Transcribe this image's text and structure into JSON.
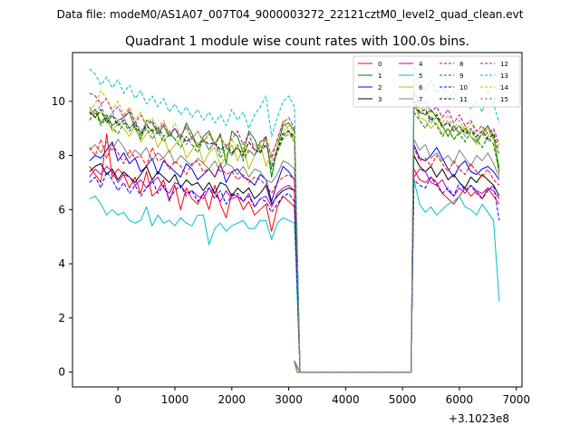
{
  "figure": {
    "suptitle": "Data file: modeM0/AS1A07_007T04_9000003272_22121cztM0_level2_quad_clean.evt",
    "offset_label": "+3.1023e8"
  },
  "chart_data": {
    "type": "line",
    "title": "Quadrant 1 module wise count rates with 100.0s bins.",
    "xlabel": "",
    "ylabel": "",
    "xlim": [
      -800,
      7100
    ],
    "ylim": [
      -0.55,
      11.8
    ],
    "x_offset": 310230000,
    "xticks": [
      0,
      1000,
      2000,
      3000,
      4000,
      5000,
      6000,
      7000
    ],
    "xtick_labels": [
      "0",
      "1000",
      "2000",
      "3000",
      "4000",
      "5000",
      "6000",
      "7000"
    ],
    "yticks": [
      0,
      2,
      4,
      6,
      8,
      10
    ],
    "ytick_labels": [
      "0",
      "2",
      "4",
      "6",
      "8",
      "10"
    ],
    "grid": false,
    "legend_position": "top-right",
    "legend_columns": 4,
    "gap": [
      3150,
      5150
    ],
    "series": [
      {
        "name": "0",
        "color": "#ff0000",
        "dash": "solid",
        "seg1": [
          7.6,
          7.3,
          7.0,
          8.8,
          7.2,
          7.5,
          7.3,
          6.8,
          7.2,
          6.6,
          7.4,
          6.5,
          6.7,
          7.1,
          6.3,
          6.9,
          6.0,
          6.8,
          6.4,
          6.2,
          6.6,
          6.0,
          6.9,
          6.2,
          5.7,
          6.6,
          6.5,
          6.0,
          6.3,
          5.8,
          6.0,
          6.2,
          5.2,
          6.1,
          6.5,
          6.3,
          6.1,
          5.7
        ],
        "seg2": [
          7.5,
          7.1,
          7.0,
          7.2,
          7.0,
          6.6,
          6.4,
          6.2,
          6.5,
          6.8,
          6.5,
          6.7,
          6.4,
          6.8,
          6.5,
          6.2
        ]
      },
      {
        "name": "1",
        "color": "#008000",
        "dash": "solid",
        "seg1": [
          9.5,
          9.7,
          9.2,
          9.5,
          9.1,
          9.3,
          9.4,
          9.6,
          9.0,
          8.6,
          9.3,
          9.2,
          8.8,
          9.1,
          8.7,
          9.0,
          8.6,
          9.2,
          8.8,
          8.3,
          8.7,
          8.9,
          8.4,
          8.8,
          7.7,
          8.9,
          8.7,
          8.1,
          8.9,
          8.6,
          8.1,
          8.7,
          7.2,
          8.3,
          9.1,
          9.2,
          8.9,
          8.4
        ],
        "seg2": [
          9.8,
          9.6,
          9.5,
          9.7,
          9.4,
          9.1,
          8.7,
          9.1,
          8.8,
          9.0,
          8.7,
          8.5,
          8.8,
          9.1,
          8.7,
          7.5
        ]
      },
      {
        "name": "2",
        "color": "#0000ff",
        "dash": "solid",
        "seg1": [
          7.8,
          8.0,
          7.9,
          8.2,
          8.5,
          7.8,
          8.1,
          7.7,
          7.9,
          7.4,
          7.6,
          7.9,
          7.3,
          7.8,
          7.6,
          7.4,
          7.2,
          7.7,
          7.5,
          7.1,
          7.3,
          7.5,
          7.2,
          7.7,
          7.0,
          7.4,
          7.5,
          7.2,
          7.1,
          6.9,
          7.3,
          7.1,
          6.3,
          7.0,
          7.6,
          7.4,
          7.1,
          6.8
        ],
        "seg2": [
          8.4,
          7.9,
          7.8,
          8.0,
          8.3,
          7.9,
          7.5,
          7.2,
          7.6,
          7.8,
          7.4,
          7.3,
          7.5,
          7.6,
          7.4,
          7.1
        ]
      },
      {
        "name": "3",
        "color": "#000000",
        "dash": "solid",
        "seg1": [
          7.4,
          7.6,
          7.7,
          7.3,
          7.5,
          7.1,
          7.4,
          7.2,
          7.0,
          7.3,
          7.6,
          7.1,
          7.4,
          7.2,
          7.0,
          7.3,
          6.8,
          7.1,
          6.9,
          7.0,
          6.7,
          7.0,
          6.6,
          7.0,
          6.9,
          6.5,
          6.8,
          6.6,
          6.8,
          6.4,
          6.6,
          6.9,
          6.2,
          6.5,
          6.7,
          6.8,
          6.7,
          6.6
        ],
        "seg2": [
          8.0,
          7.6,
          7.4,
          7.6,
          7.2,
          7.5,
          7.1,
          7.3,
          7.0,
          6.8,
          7.2,
          7.0,
          7.3,
          7.1,
          6.9,
          6.5
        ]
      },
      {
        "name": "4",
        "color": "#bf00bf",
        "dash": "solid",
        "seg1": [
          7.2,
          7.5,
          7.3,
          7.6,
          7.4,
          7.0,
          7.3,
          7.2,
          6.9,
          7.1,
          6.8,
          7.0,
          7.2,
          6.8,
          6.6,
          7.0,
          6.9,
          6.6,
          6.7,
          6.5,
          6.4,
          6.8,
          6.6,
          6.3,
          6.7,
          6.4,
          6.5,
          6.3,
          6.6,
          6.1,
          6.4,
          6.5,
          6.1,
          6.6,
          6.8,
          6.9,
          6.7,
          6.0
        ],
        "seg2": [
          7.2,
          7.5,
          7.4,
          7.0,
          6.9,
          7.1,
          6.7,
          6.5,
          6.8,
          6.6,
          6.9,
          6.7,
          6.6,
          6.8,
          6.7,
          6.4
        ]
      },
      {
        "name": "5",
        "color": "#00bfbf",
        "dash": "solid",
        "seg1": [
          6.4,
          6.5,
          6.2,
          5.8,
          6.0,
          5.8,
          5.9,
          5.6,
          5.5,
          5.6,
          6.1,
          5.4,
          5.8,
          5.5,
          5.6,
          5.4,
          5.7,
          5.5,
          5.4,
          5.8,
          5.8,
          4.7,
          5.3,
          5.5,
          5.2,
          5.4,
          5.5,
          5.6,
          5.3,
          5.3,
          5.6,
          5.6,
          4.9,
          5.5,
          5.7,
          5.6,
          5.5,
          4.3
        ],
        "seg2": [
          7.1,
          6.2,
          5.9,
          6.1,
          5.8,
          6.0,
          6.2,
          6.3,
          6.5,
          6.1,
          6.0,
          5.8,
          6.2,
          5.9,
          5.6,
          2.6
        ]
      },
      {
        "name": "6",
        "color": "#bfbf00",
        "dash": "solid",
        "seg1": [
          9.7,
          9.4,
          9.6,
          9.3,
          8.9,
          9.2,
          9.0,
          8.7,
          9.1,
          8.5,
          8.8,
          9.0,
          8.3,
          8.7,
          8.1,
          8.4,
          8.6,
          7.9,
          8.2,
          8.5,
          7.7,
          8.1,
          8.3,
          7.6,
          8.0,
          8.4,
          7.8,
          8.3,
          7.5,
          8.0,
          8.4,
          7.6,
          8.1,
          8.5,
          9.3,
          8.9,
          8.5,
          7.9
        ],
        "seg2": [
          9.9,
          9.4,
          9.3,
          9.0,
          9.2,
          8.8,
          9.0,
          8.6,
          8.9,
          9.1,
          8.7,
          8.4,
          8.8,
          9.0,
          8.6,
          7.3
        ]
      },
      {
        "name": "7",
        "color": "#808080",
        "dash": "solid",
        "seg1": [
          8.2,
          8.4,
          8.1,
          8.5,
          8.2,
          8.6,
          8.3,
          7.9,
          8.2,
          8.0,
          8.3,
          7.8,
          8.1,
          7.9,
          8.2,
          7.7,
          8.0,
          7.8,
          7.6,
          7.9,
          7.7,
          7.5,
          7.8,
          7.4,
          7.7,
          7.6,
          7.3,
          7.6,
          7.2,
          7.5,
          7.4,
          7.1,
          7.0,
          7.3,
          7.8,
          7.7,
          7.5,
          7.0
        ],
        "seg2": [
          8.6,
          8.2,
          8.4,
          7.9,
          8.1,
          7.8,
          8.0,
          7.7,
          8.2,
          7.9,
          7.6,
          8.0,
          7.8,
          8.1,
          7.7,
          7.2
        ]
      },
      {
        "name": "8",
        "color": "#ff0000",
        "dash": "dashed",
        "seg1": [
          8.3,
          8.0,
          8.6,
          7.9,
          8.4,
          8.1,
          7.7,
          8.2,
          7.9,
          8.0,
          7.6,
          8.3,
          7.8,
          7.9,
          7.5,
          7.8,
          7.6,
          7.3,
          7.7,
          7.8,
          7.4,
          7.5,
          7.2,
          7.6,
          7.3,
          7.4,
          7.1,
          7.3,
          7.0,
          7.2,
          7.1,
          6.9,
          6.6,
          7.0,
          7.2,
          7.3,
          7.1,
          6.8
        ],
        "seg2": [
          8.3,
          7.8,
          7.9,
          7.6,
          8.0,
          7.7,
          7.4,
          7.8,
          7.5,
          7.3,
          7.7,
          7.4,
          7.2,
          7.5,
          7.1,
          6.9
        ]
      },
      {
        "name": "9",
        "color": "#008000",
        "dash": "dashed",
        "seg1": [
          9.3,
          9.6,
          9.1,
          9.4,
          9.0,
          8.8,
          9.2,
          8.9,
          9.1,
          8.7,
          9.0,
          8.6,
          8.9,
          8.5,
          8.8,
          8.6,
          8.3,
          8.7,
          8.4,
          8.1,
          8.6,
          8.2,
          8.5,
          7.9,
          8.3,
          8.0,
          8.4,
          7.8,
          8.2,
          8.0,
          8.5,
          8.6,
          7.5,
          8.1,
          8.7,
          8.9,
          8.6,
          8.1
        ],
        "seg2": [
          9.6,
          9.3,
          9.0,
          9.4,
          9.1,
          8.7,
          9.0,
          8.6,
          8.8,
          8.5,
          8.9,
          8.6,
          8.3,
          8.7,
          8.4,
          7.4
        ]
      },
      {
        "name": "10",
        "color": "#0000ff",
        "dash": "dashed",
        "seg1": [
          7.0,
          7.2,
          6.8,
          7.4,
          7.1,
          6.7,
          7.0,
          6.6,
          6.9,
          6.5,
          6.8,
          7.1,
          6.6,
          6.9,
          6.4,
          6.7,
          6.9,
          6.5,
          6.7,
          6.3,
          6.6,
          6.8,
          6.4,
          6.7,
          6.2,
          6.5,
          6.6,
          6.3,
          6.5,
          6.1,
          6.4,
          6.3,
          5.9,
          6.2,
          6.5,
          6.6,
          6.3,
          5.9
        ],
        "seg2": [
          7.1,
          6.9,
          6.8,
          7.2,
          6.9,
          6.6,
          6.8,
          6.5,
          7.0,
          6.7,
          6.9,
          6.6,
          6.4,
          6.7,
          6.9,
          5.6
        ]
      },
      {
        "name": "11",
        "color": "#000000",
        "dash": "dashed",
        "seg1": [
          9.6,
          9.4,
          9.7,
          9.2,
          9.5,
          9.1,
          9.3,
          9.0,
          9.2,
          8.8,
          9.1,
          8.9,
          9.0,
          8.7,
          8.9,
          8.6,
          8.8,
          8.5,
          8.7,
          8.3,
          8.6,
          8.4,
          8.5,
          8.2,
          8.4,
          8.1,
          8.3,
          8.0,
          8.5,
          8.2,
          8.1,
          8.4,
          7.6,
          8.2,
          8.8,
          8.9,
          8.7,
          8.2
        ],
        "seg2": [
          10.0,
          9.6,
          9.7,
          9.3,
          9.5,
          9.1,
          9.2,
          8.9,
          9.1,
          8.8,
          9.0,
          8.7,
          8.9,
          8.6,
          8.8,
          8.0
        ]
      },
      {
        "name": "12",
        "color": "#bf00bf",
        "dash": "dashed",
        "seg1": [
          10.3,
          10.2,
          9.9,
          10.1,
          9.6,
          9.8,
          9.4,
          9.7,
          9.2,
          9.5,
          9.1,
          9.3,
          8.9,
          9.2,
          8.8,
          9.0,
          8.7,
          9.1,
          8.6,
          8.9,
          8.5,
          8.8,
          8.4,
          8.7,
          8.3,
          8.6,
          8.9,
          8.4,
          8.8,
          8.2,
          8.5,
          8.7,
          7.9,
          8.6,
          9.2,
          9.4,
          9.0,
          8.3
        ],
        "seg2": [
          10.4,
          9.9,
          10.0,
          9.6,
          9.8,
          9.4,
          9.7,
          9.2,
          9.5,
          9.1,
          9.3,
          8.9,
          9.1,
          8.8,
          9.0,
          8.4
        ]
      },
      {
        "name": "13",
        "color": "#00bfbf",
        "dash": "dashed",
        "seg1": [
          11.2,
          11.0,
          10.6,
          10.9,
          10.5,
          10.8,
          10.3,
          10.6,
          10.1,
          10.4,
          9.9,
          10.2,
          9.8,
          10.1,
          9.6,
          9.9,
          9.5,
          9.8,
          9.4,
          9.7,
          9.3,
          9.6,
          9.2,
          9.5,
          9.1,
          9.7,
          9.3,
          9.6,
          9.0,
          9.5,
          9.8,
          10.2,
          8.7,
          9.4,
          10.0,
          10.2,
          9.8,
          8.6
        ],
        "seg2": [
          11.3,
          10.7,
          10.4,
          10.8,
          10.3,
          10.5,
          10.1,
          10.4,
          9.9,
          10.2,
          9.7,
          10.0,
          9.6,
          10.4,
          9.9,
          9.2
        ]
      },
      {
        "name": "14",
        "color": "#bfbf00",
        "dash": "dashed",
        "seg1": [
          9.6,
          9.9,
          10.4,
          10.1,
          9.7,
          10.0,
          9.5,
          9.8,
          9.3,
          9.6,
          9.1,
          9.4,
          9.0,
          9.3,
          8.8,
          9.2,
          8.7,
          9.0,
          8.6,
          8.9,
          8.5,
          8.8,
          8.4,
          8.7,
          8.3,
          8.6,
          8.2,
          8.5,
          8.1,
          8.4,
          8.3,
          8.6,
          7.8,
          8.3,
          8.9,
          9.1,
          8.8,
          8.1
        ],
        "seg2": [
          10.1,
          9.7,
          9.8,
          9.4,
          9.6,
          9.2,
          9.5,
          9.0,
          9.3,
          8.9,
          9.2,
          8.8,
          9.0,
          8.7,
          8.9,
          8.2
        ]
      },
      {
        "name": "15",
        "color": "#808080",
        "dash": "dashed",
        "seg1": [
          9.8,
          9.5,
          9.9,
          9.3,
          9.6,
          9.2,
          9.4,
          9.0,
          9.3,
          8.9,
          9.2,
          8.8,
          9.1,
          8.7,
          8.9,
          8.6,
          8.8,
          8.4,
          8.7,
          8.3,
          8.6,
          8.2,
          8.5,
          8.1,
          8.4,
          8.0,
          8.3,
          7.9,
          8.2,
          8.0,
          8.3,
          8.4,
          7.6,
          8.1,
          8.6,
          8.8,
          8.5,
          7.9
        ],
        "seg2": [
          9.9,
          9.5,
          9.6,
          9.2,
          9.4,
          9.0,
          9.3,
          8.9,
          9.1,
          8.7,
          9.0,
          8.6,
          8.8,
          8.5,
          8.7,
          8.0
        ]
      }
    ]
  }
}
